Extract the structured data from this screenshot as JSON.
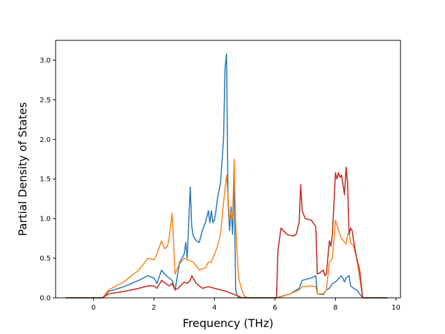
{
  "chart_data": {
    "type": "line",
    "title": "",
    "xlabel": "Frequency (THz)",
    "ylabel": "Partial Density of States",
    "xlim": [
      -1.25,
      10.15
    ],
    "ylim": [
      0,
      3.25
    ],
    "xticks": [
      0,
      2,
      4,
      6,
      8,
      10
    ],
    "xtick_labels": [
      "0",
      "2",
      "4",
      "6",
      "8",
      "10"
    ],
    "yticks": [
      0,
      0.5,
      1.0,
      1.5,
      2.0,
      2.5,
      3.0
    ],
    "ytick_labels": [
      "0.0",
      "0.5",
      "1.0",
      "1.5",
      "2.0",
      "2.5",
      "3.0"
    ],
    "grid": false,
    "legend": "none",
    "series": [
      {
        "color": "#1f77b4",
        "x": [
          -0.9,
          0.3,
          0.5,
          1.0,
          1.5,
          1.8,
          2.0,
          2.1,
          2.25,
          2.4,
          2.5,
          2.6,
          2.7,
          2.85,
          3.0,
          3.05,
          3.1,
          3.2,
          3.25,
          3.3,
          3.4,
          3.5,
          3.6,
          3.7,
          3.8,
          3.85,
          3.9,
          3.95,
          4.0,
          4.05,
          4.1,
          4.2,
          4.3,
          4.35,
          4.4,
          4.45,
          4.5,
          4.55,
          4.6,
          4.65,
          4.7,
          4.75,
          4.8,
          4.9,
          5.1,
          6.05,
          6.5,
          6.8,
          6.9,
          7.2,
          7.35,
          7.4,
          7.6,
          7.7,
          7.8,
          7.9,
          8.0,
          8.2,
          8.3,
          8.35,
          8.45,
          8.5,
          8.6,
          8.7,
          8.8,
          8.9,
          9.7
        ],
        "y": [
          0.0,
          0.0,
          0.08,
          0.14,
          0.22,
          0.28,
          0.25,
          0.18,
          0.35,
          0.28,
          0.25,
          0.22,
          0.1,
          0.45,
          0.55,
          0.7,
          0.5,
          1.4,
          0.9,
          0.78,
          0.72,
          0.7,
          0.85,
          0.95,
          1.1,
          0.95,
          1.1,
          0.95,
          0.98,
          1.1,
          1.25,
          1.45,
          2.0,
          2.9,
          3.08,
          1.2,
          0.85,
          1.15,
          0.8,
          1.55,
          0.1,
          0.03,
          0.0,
          0.0,
          0.0,
          0.0,
          0.05,
          0.12,
          0.22,
          0.25,
          0.28,
          0.05,
          0.04,
          0.1,
          0.12,
          0.18,
          0.2,
          0.28,
          0.2,
          0.25,
          0.28,
          0.15,
          0.12,
          0.1,
          0.05,
          0.0,
          0.0
        ]
      },
      {
        "color": "#ff7f0e",
        "x": [
          -0.9,
          0.3,
          0.5,
          1.0,
          1.5,
          1.7,
          1.8,
          2.0,
          2.1,
          2.25,
          2.35,
          2.45,
          2.5,
          2.6,
          2.7,
          2.8,
          3.0,
          3.1,
          3.3,
          3.5,
          3.7,
          3.8,
          3.9,
          4.0,
          4.1,
          4.2,
          4.3,
          4.4,
          4.5,
          4.55,
          4.6,
          4.65,
          4.7,
          4.75,
          4.8,
          4.9,
          5.0,
          5.1,
          6.1,
          6.5,
          6.8,
          6.9,
          7.2,
          7.35,
          7.4,
          7.6,
          7.7,
          7.8,
          7.85,
          7.9,
          8.0,
          8.1,
          8.2,
          8.35,
          8.4,
          8.45,
          8.5,
          8.6,
          8.7,
          8.8,
          8.9,
          9.7
        ],
        "y": [
          0.0,
          0.0,
          0.1,
          0.2,
          0.35,
          0.45,
          0.5,
          0.48,
          0.55,
          0.72,
          0.62,
          0.65,
          0.75,
          1.07,
          0.3,
          0.4,
          0.5,
          0.48,
          0.45,
          0.35,
          0.38,
          0.45,
          0.45,
          0.55,
          0.65,
          0.8,
          1.2,
          1.55,
          0.98,
          1.08,
          0.98,
          1.75,
          0.95,
          0.55,
          0.25,
          0.1,
          0.02,
          0.0,
          0.0,
          0.05,
          0.1,
          0.14,
          0.15,
          0.14,
          0.05,
          0.05,
          0.1,
          0.45,
          0.48,
          0.5,
          0.98,
          0.85,
          0.75,
          0.68,
          0.8,
          0.82,
          0.7,
          0.65,
          0.5,
          0.25,
          0.0,
          0.0
        ]
      },
      {
        "color": "#2ca02c",
        "x": [
          -0.9,
          0.3,
          0.5,
          1.0,
          1.5,
          1.8,
          2.0,
          2.1,
          2.25,
          2.5,
          2.6,
          2.7,
          2.8,
          3.0,
          3.1,
          3.2,
          3.25,
          3.4,
          3.6,
          3.8,
          4.0,
          4.2,
          4.4,
          4.6,
          4.8,
          4.9,
          5.0,
          6.05,
          6.1,
          6.2,
          6.4,
          6.6,
          6.7,
          6.8,
          6.85,
          6.9,
          7.0,
          7.2,
          7.35,
          7.4,
          7.5,
          7.6,
          7.65,
          7.7,
          7.8,
          7.85,
          7.9,
          8.0,
          8.05,
          8.1,
          8.15,
          8.2,
          8.3,
          8.35,
          8.4,
          8.45,
          8.5,
          8.55,
          8.6,
          8.7,
          8.8,
          8.9,
          9.7
        ],
        "y": [
          0.0,
          0.0,
          0.05,
          0.08,
          0.12,
          0.15,
          0.15,
          0.12,
          0.22,
          0.15,
          0.18,
          0.1,
          0.12,
          0.2,
          0.18,
          0.22,
          0.28,
          0.18,
          0.12,
          0.14,
          0.12,
          0.1,
          0.08,
          0.05,
          0.02,
          0.0,
          0.0,
          0.0,
          0.6,
          0.88,
          0.8,
          0.78,
          0.8,
          0.95,
          1.43,
          1.1,
          1.0,
          0.98,
          0.9,
          0.3,
          0.32,
          0.35,
          0.28,
          0.3,
          0.72,
          0.65,
          0.8,
          1.58,
          1.5,
          1.58,
          1.52,
          1.55,
          1.3,
          1.65,
          1.45,
          0.8,
          0.88,
          0.85,
          0.72,
          0.5,
          0.35,
          0.0,
          0.0
        ]
      },
      {
        "color": "#d62728",
        "x": [
          -0.9,
          0.3,
          0.5,
          1.0,
          1.5,
          1.8,
          2.0,
          2.1,
          2.25,
          2.5,
          2.6,
          2.7,
          2.8,
          3.0,
          3.1,
          3.2,
          3.25,
          3.4,
          3.6,
          3.8,
          4.0,
          4.2,
          4.4,
          4.6,
          4.8,
          4.9,
          5.0,
          6.05,
          6.1,
          6.2,
          6.4,
          6.6,
          6.7,
          6.8,
          6.85,
          6.9,
          7.0,
          7.2,
          7.35,
          7.4,
          7.5,
          7.6,
          7.65,
          7.7,
          7.8,
          7.85,
          7.9,
          8.0,
          8.05,
          8.1,
          8.15,
          8.2,
          8.3,
          8.35,
          8.4,
          8.45,
          8.5,
          8.55,
          8.6,
          8.7,
          8.8,
          8.9,
          9.7
        ],
        "y": [
          0.0,
          0.0,
          0.05,
          0.08,
          0.12,
          0.15,
          0.15,
          0.12,
          0.22,
          0.15,
          0.18,
          0.1,
          0.12,
          0.2,
          0.18,
          0.22,
          0.28,
          0.18,
          0.12,
          0.14,
          0.12,
          0.1,
          0.08,
          0.05,
          0.02,
          0.0,
          0.0,
          0.0,
          0.6,
          0.88,
          0.8,
          0.78,
          0.8,
          0.95,
          1.43,
          1.1,
          1.0,
          0.98,
          0.9,
          0.3,
          0.32,
          0.35,
          0.28,
          0.3,
          0.72,
          0.65,
          0.8,
          1.58,
          1.5,
          1.58,
          1.52,
          1.55,
          1.3,
          1.65,
          1.45,
          0.8,
          0.88,
          0.85,
          0.72,
          0.5,
          0.35,
          0.0,
          0.0
        ]
      }
    ]
  }
}
